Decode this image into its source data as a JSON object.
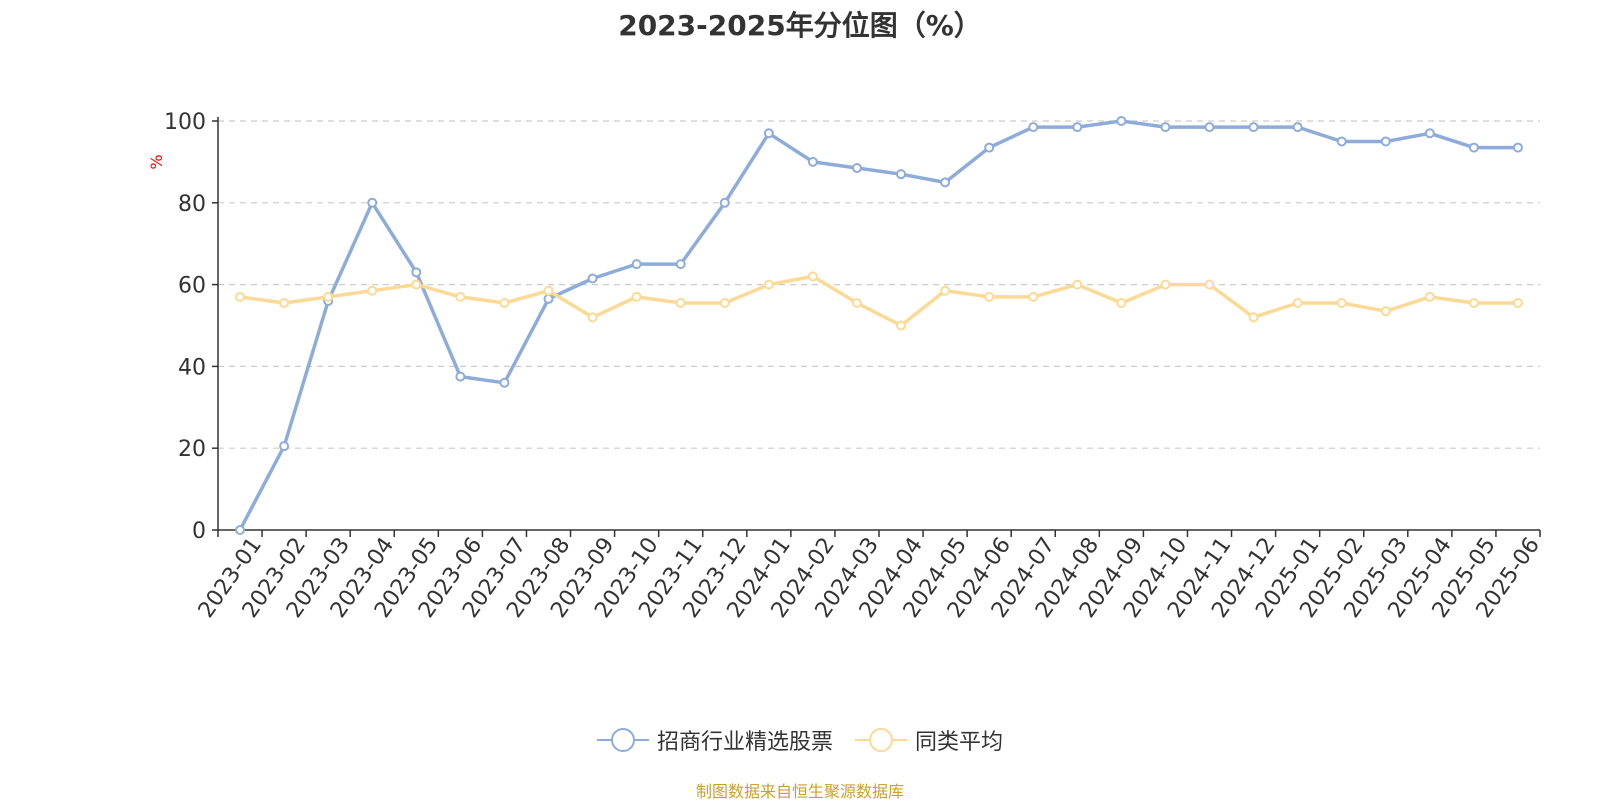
{
  "chart_data": {
    "type": "line",
    "title": "2023-2025年分位图（%）",
    "ylabel": "%",
    "xlabel": "",
    "ylim": [
      0,
      100
    ],
    "yticks": [
      0,
      20,
      40,
      60,
      80,
      100
    ],
    "grid": true,
    "legend_position": "bottom-center",
    "categories": [
      "2023-01",
      "2023-02",
      "2023-03",
      "2023-04",
      "2023-05",
      "2023-06",
      "2023-07",
      "2023-08",
      "2023-09",
      "2023-10",
      "2023-11",
      "2023-12",
      "2024-01",
      "2024-02",
      "2024-03",
      "2024-04",
      "2024-05",
      "2024-06",
      "2024-07",
      "2024-08",
      "2024-09",
      "2024-10",
      "2024-11",
      "2024-12",
      "2025-01",
      "2025-02",
      "2025-03",
      "2025-04",
      "2025-05",
      "2025-06"
    ],
    "series": [
      {
        "name": "招商行业精选股票",
        "color": "#8eacd9",
        "values": [
          0,
          20.5,
          56,
          80,
          63,
          37.5,
          36,
          56.5,
          61.5,
          65,
          65,
          80,
          97,
          90,
          88.5,
          87,
          85,
          93.5,
          98.5,
          98.5,
          100,
          98.5,
          98.5,
          98.5,
          98.5,
          95,
          95,
          97,
          93.5,
          93.5
        ]
      },
      {
        "name": "同类平均",
        "color": "#fcda95",
        "values": [
          57,
          55.5,
          57,
          58.5,
          60,
          57,
          55.5,
          58.5,
          52,
          57,
          55.5,
          55.5,
          60,
          62,
          55.5,
          50,
          58.5,
          57,
          57,
          60,
          55.5,
          60,
          60,
          52,
          55.5,
          55.5,
          53.5,
          57,
          55.5,
          55.5
        ]
      }
    ]
  },
  "source_note": "制图数据来自恒生聚源数据库",
  "colors": {
    "axis": "#333333",
    "grid": "#cccccc",
    "ylabel": "#ff0000",
    "source_note": "#c9a227"
  }
}
